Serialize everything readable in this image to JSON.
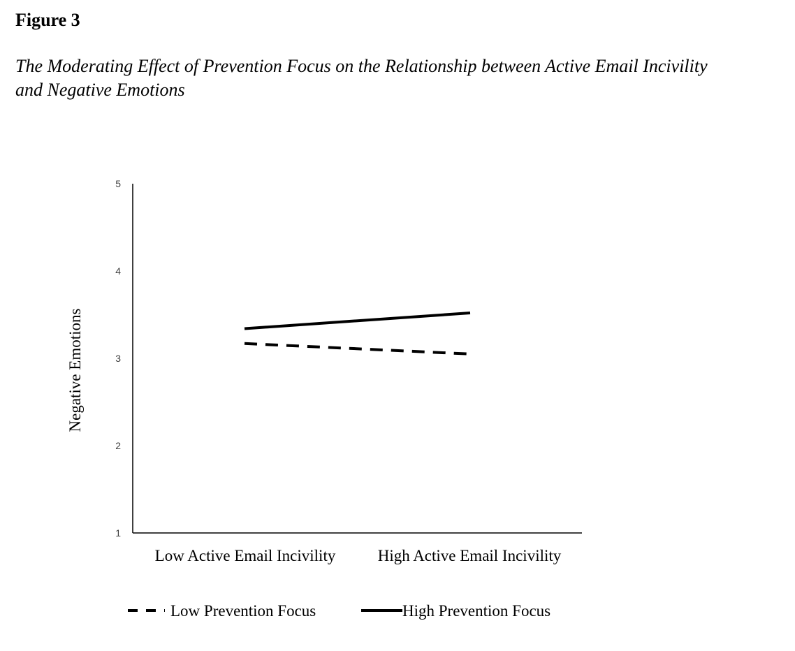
{
  "figure_label": "Figure 3",
  "figure_title_lines": [
    "The Moderating Effect of Prevention Focus on the Relationship between Active Email Incivility",
    "and Negative Emotions"
  ],
  "chart_data": {
    "type": "line",
    "title": "",
    "xlabel": "",
    "ylabel": "Negative Emotions",
    "categories": [
      "Low Active Email Incivility",
      "High Active Email Incivility"
    ],
    "ylim": [
      1,
      5
    ],
    "yticks": [
      "1",
      "2",
      "3",
      "4",
      "5"
    ],
    "grid": false,
    "legend_position": "bottom",
    "series": [
      {
        "name": "Low Prevention Focus",
        "values": [
          3.17,
          3.05
        ],
        "style": "dashed",
        "color": "#000000"
      },
      {
        "name": "High Prevention Focus",
        "values": [
          3.34,
          3.52
        ],
        "style": "solid",
        "color": "#000000"
      }
    ]
  }
}
